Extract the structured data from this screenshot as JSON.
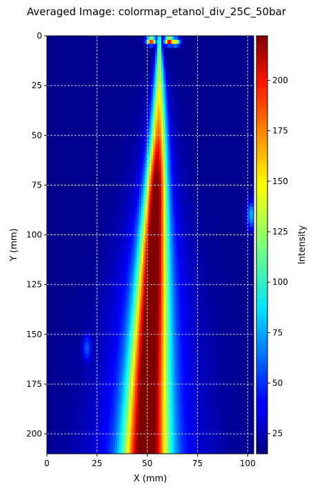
{
  "chart_data": {
    "type": "heatmap",
    "title": "Averaged Image: colormap_etanol_div_25C_50bar",
    "xlabel": "X (mm)",
    "ylabel": "Y (mm)",
    "xlim": [
      0,
      103
    ],
    "ylim": [
      210,
      0
    ],
    "xticks": [
      0,
      25,
      50,
      75,
      100
    ],
    "yticks": [
      0,
      25,
      50,
      75,
      100,
      125,
      150,
      175,
      200
    ],
    "grid": true,
    "colormap": "jet",
    "colorbar": {
      "label": "Intensity",
      "range": [
        15,
        222
      ],
      "ticks": [
        25,
        50,
        75,
        100,
        125,
        150,
        175,
        200
      ]
    },
    "background_intensity": 18,
    "jet_profile": [
      {
        "y": 0,
        "x_center": 56,
        "half_width": 0.6,
        "peak": 110
      },
      {
        "y": 10,
        "x_center": 56,
        "half_width": 1.2,
        "peak": 120
      },
      {
        "y": 25,
        "x_center": 56,
        "half_width": 2.0,
        "peak": 130
      },
      {
        "y": 50,
        "x_center": 55.5,
        "half_width": 2.8,
        "peak": 165
      },
      {
        "y": 75,
        "x_center": 54.5,
        "half_width": 3.5,
        "peak": 215
      },
      {
        "y": 100,
        "x_center": 53.5,
        "half_width": 4.3,
        "peak": 220
      },
      {
        "y": 125,
        "x_center": 52.5,
        "half_width": 5.0,
        "peak": 220
      },
      {
        "y": 150,
        "x_center": 51.5,
        "half_width": 5.8,
        "peak": 220
      },
      {
        "y": 175,
        "x_center": 50.5,
        "half_width": 6.5,
        "peak": 220
      },
      {
        "y": 210,
        "x_center": 49.5,
        "half_width": 7.5,
        "peak": 220
      }
    ],
    "hotspots": [
      {
        "x": 52,
        "y": 2.5,
        "intensity": 200
      },
      {
        "x": 61,
        "y": 2.5,
        "intensity": 215
      },
      {
        "x": 64,
        "y": 3,
        "intensity": 150
      },
      {
        "x": 102,
        "y": 90,
        "intensity": 80
      },
      {
        "x": 20,
        "y": 157,
        "intensity": 60
      }
    ]
  }
}
